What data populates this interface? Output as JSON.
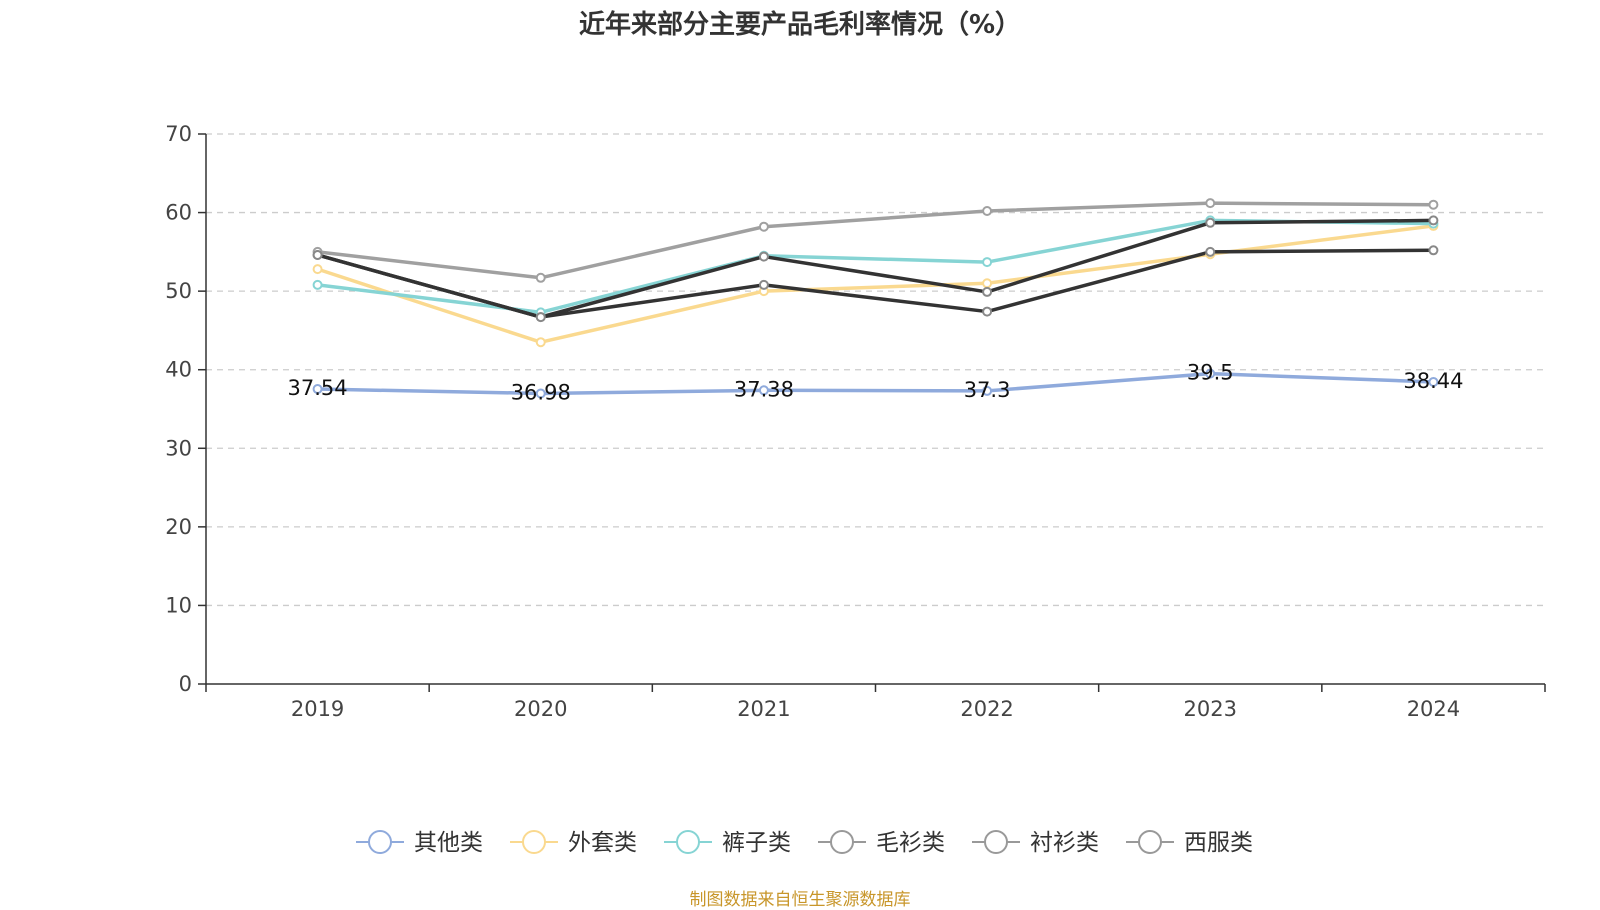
{
  "chart_data": {
    "type": "line",
    "title": "近年来部分主要产品毛利率情况（%）",
    "categories": [
      "2019",
      "2020",
      "2021",
      "2022",
      "2023",
      "2024"
    ],
    "ylim": [
      0,
      70
    ],
    "yticks": [
      0,
      10,
      20,
      30,
      40,
      50,
      60,
      70
    ],
    "grid": true,
    "legend_position": "bottom",
    "series": [
      {
        "name": "其他类",
        "color": "#8faadc",
        "values": [
          37.54,
          36.98,
          37.38,
          37.3,
          39.5,
          38.44
        ],
        "labels": [
          "37.54",
          "36.98",
          "37.38",
          "37.3",
          "39.5",
          "38.44"
        ]
      },
      {
        "name": "外套类",
        "color": "#fad98f",
        "values": [
          52.8,
          43.5,
          50.0,
          51.0,
          54.7,
          58.3
        ]
      },
      {
        "name": "裤子类",
        "color": "#86d4d4",
        "values": [
          50.8,
          47.3,
          54.5,
          53.7,
          59.0,
          58.6
        ]
      },
      {
        "name": "毛衫类",
        "color": "#a0a0a0",
        "values": [
          55.0,
          51.7,
          58.2,
          60.2,
          61.2,
          61.0
        ]
      },
      {
        "name": "衬衫类",
        "color": "#333333",
        "values": [
          54.6,
          46.7,
          54.4,
          49.9,
          58.7,
          59.0
        ]
      },
      {
        "name": "西服类",
        "color": "#333333",
        "values": [
          54.6,
          46.7,
          50.8,
          47.4,
          55.0,
          55.2
        ]
      }
    ]
  },
  "legend_marker_color": "#999999",
  "source": "制图数据来自恒生聚源数据库"
}
